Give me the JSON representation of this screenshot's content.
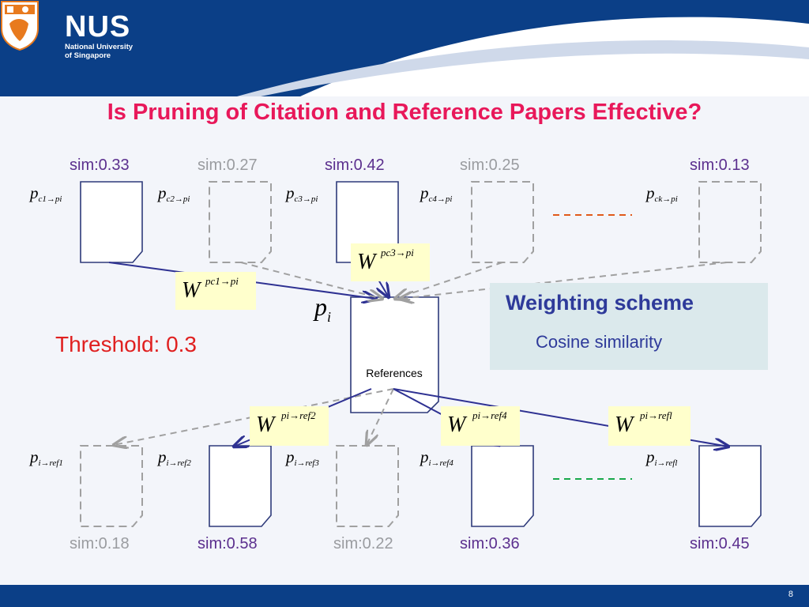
{
  "header": {
    "logo_name": "NUS",
    "logo_sub1": "National University",
    "logo_sub2": "of Singapore"
  },
  "title": "Is Pruning of Citation and Reference Papers Effective?",
  "citations": [
    {
      "sim": "sim:0.33",
      "label_main": "p",
      "label_sub": "c1→pi",
      "kept": true
    },
    {
      "sim": "sim:0.27",
      "label_main": "p",
      "label_sub": "c2→pi",
      "kept": false
    },
    {
      "sim": "sim:0.42",
      "label_main": "p",
      "label_sub": "c3→pi",
      "kept": true
    },
    {
      "sim": "sim:0.25",
      "label_main": "p",
      "label_sub": "c4→pi",
      "kept": false
    },
    {
      "sim": "sim:0.13",
      "label_main": "p",
      "label_sub": "ck→pi",
      "kept": false
    }
  ],
  "references": [
    {
      "sim": "sim:0.18",
      "label_main": "p",
      "label_sub": "i→ref1",
      "kept": false
    },
    {
      "sim": "sim:0.58",
      "label_main": "p",
      "label_sub": "i→ref2",
      "kept": true
    },
    {
      "sim": "sim:0.22",
      "label_main": "p",
      "label_sub": "i→ref3",
      "kept": false
    },
    {
      "sim": "sim:0.36",
      "label_main": "p",
      "label_sub": "i→ref4",
      "kept": true
    },
    {
      "sim": "sim:0.45",
      "label_main": "p",
      "label_sub": "i→refl",
      "kept": true
    }
  ],
  "weights": {
    "w_letter": "W",
    "c1": "pc1→pi",
    "c3": "pc3→pi",
    "ref2": "pi→ref2",
    "ref4": "pi→ref4",
    "refl": "pi→refl"
  },
  "center": {
    "main": "p",
    "sub": "i",
    "caption": "References"
  },
  "threshold": "Threshold: 0.3",
  "weighting": {
    "title": "Weighting scheme",
    "subtitle": "Cosine similarity"
  },
  "page_number": "8",
  "colors": {
    "kept_arrow": "#2e3192",
    "pruned_arrow": "#a0a0a0",
    "top_dash": "#e05a1a",
    "bottom_dash": "#18a84a"
  }
}
